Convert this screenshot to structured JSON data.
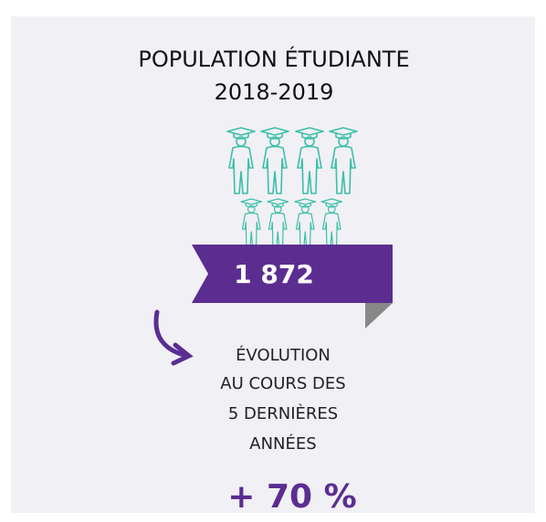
{
  "title": [
    "POPULATION ÉTUDIANTE",
    "2018-2019"
  ],
  "count": "1 872",
  "evolution": {
    "label": [
      "ÉVOLUTION",
      "AU COURS DES",
      "5 DERNIÈRES",
      "ANNÉES"
    ],
    "value": "+ 70 %"
  }
}
